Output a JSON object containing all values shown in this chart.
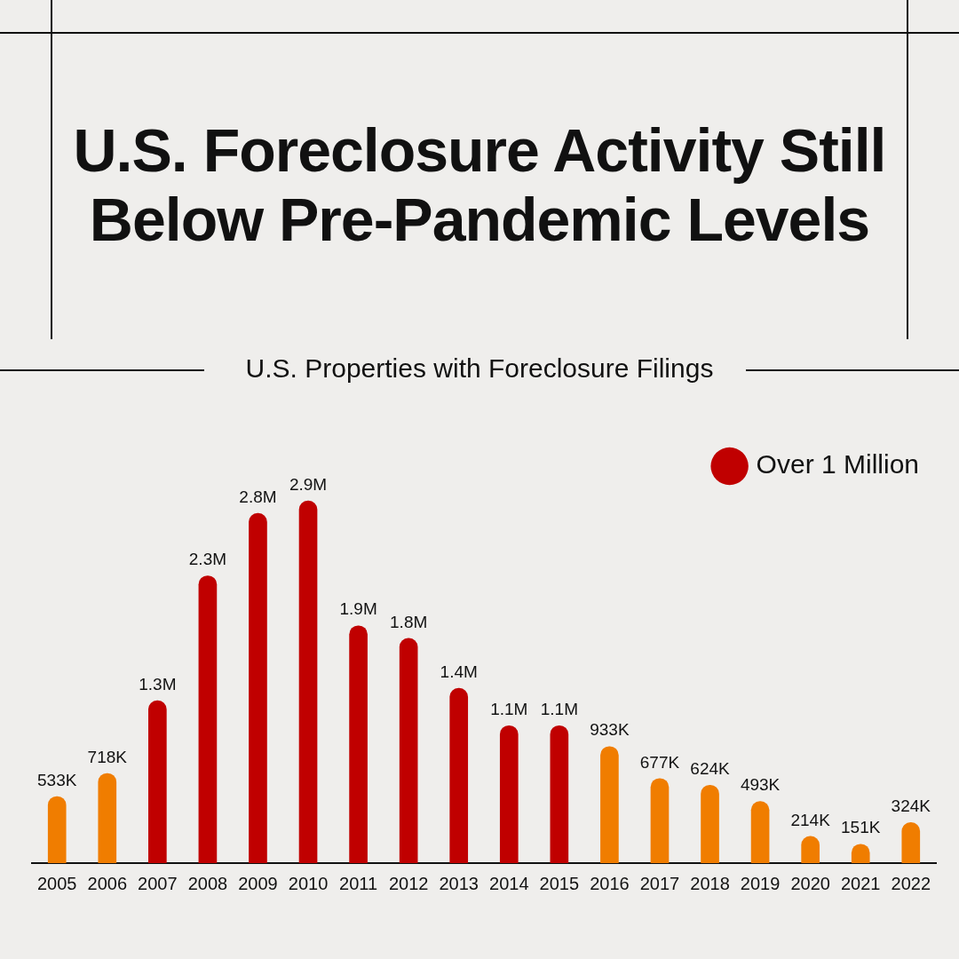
{
  "chart_data": {
    "type": "bar",
    "title": "U.S. Foreclosure Activity Still Below Pre-Pandemic Levels",
    "subtitle": "U.S. Properties with Foreclosure Filings",
    "categories": [
      "2005",
      "2006",
      "2007",
      "2008",
      "2009",
      "2010",
      "2011",
      "2012",
      "2013",
      "2014",
      "2015",
      "2016",
      "2017",
      "2018",
      "2019",
      "2020",
      "2021",
      "2022"
    ],
    "series": [
      {
        "name": "Over 1 Million",
        "color": "#c00000",
        "values": [
          null,
          null,
          1300000,
          2300000,
          2800000,
          2900000,
          1900000,
          1800000,
          1400000,
          1100000,
          1100000,
          null,
          null,
          null,
          null,
          null,
          null,
          null
        ],
        "value_labels": [
          null,
          null,
          "1.3M",
          "2.3M",
          "2.8M",
          "2.9M",
          "1.9M",
          "1.8M",
          "1.4M",
          "1.1M",
          "1.1M",
          null,
          null,
          null,
          null,
          null,
          null,
          null
        ]
      },
      {
        "color": "#f07d00",
        "values": [
          533000,
          718000,
          null,
          null,
          null,
          null,
          null,
          null,
          null,
          null,
          null,
          933000,
          677000,
          624000,
          493000,
          214000,
          151000,
          324000
        ],
        "value_labels": [
          "533K",
          "718K",
          null,
          null,
          null,
          null,
          null,
          null,
          null,
          null,
          null,
          "933K",
          "677K",
          "624K",
          "493K",
          "214K",
          "151K",
          "324K"
        ]
      }
    ],
    "legend": "top right"
  }
}
